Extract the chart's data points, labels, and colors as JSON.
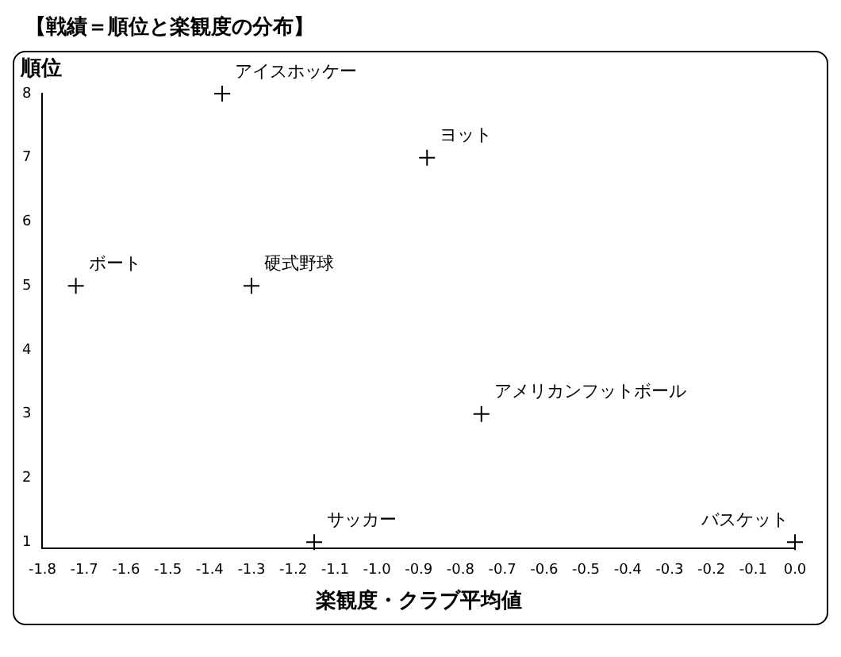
{
  "chart_data": {
    "type": "scatter",
    "title": "【戦績＝順位と楽観度の分布】",
    "xlabel": "楽観度・クラブ平均値",
    "ylabel": "順位",
    "x": [
      -1.72,
      -1.37,
      -1.3,
      -0.88,
      -0.75,
      -1.15,
      0.0
    ],
    "values": [
      5,
      8,
      5,
      7,
      3,
      1,
      1
    ],
    "color": "#000000",
    "marker": "cross",
    "grid": false,
    "legend": false,
    "xlim": [
      -1.8,
      0.0
    ],
    "xticks": [
      {
        "value": -1.8,
        "label": "-1.8"
      },
      {
        "value": -1.7,
        "label": "-1.7"
      },
      {
        "value": -1.6,
        "label": "-1.6"
      },
      {
        "value": -1.5,
        "label": "-1.5"
      },
      {
        "value": -1.4,
        "label": "-1.4"
      },
      {
        "value": -1.3,
        "label": "-1.3"
      },
      {
        "value": -1.2,
        "label": "-1.2"
      },
      {
        "value": -1.1,
        "label": "-1.1"
      },
      {
        "value": -1.0,
        "label": "-1.0"
      },
      {
        "value": -0.9,
        "label": "-0.9"
      },
      {
        "value": -0.8,
        "label": "-0.8"
      },
      {
        "value": -0.7,
        "label": "-0.7"
      },
      {
        "value": -0.6,
        "label": "-0.6"
      },
      {
        "value": -0.5,
        "label": "-0.5"
      },
      {
        "value": -0.4,
        "label": "-0.4"
      },
      {
        "value": -0.3,
        "label": "-0.3"
      },
      {
        "value": -0.2,
        "label": "-0.2"
      },
      {
        "value": -0.1,
        "label": "-0.1"
      },
      {
        "value": 0.0,
        "label": "0.0"
      }
    ],
    "ylim": [
      0.9,
      8
    ],
    "yticks": [
      1,
      2,
      3,
      4,
      5,
      6,
      7,
      8
    ],
    "annotations": [
      {
        "text": "ボート",
        "x": -1.72,
        "y": 5
      },
      {
        "text": "アイスホッケー",
        "x": -1.37,
        "y": 8
      },
      {
        "text": "硬式野球",
        "x": -1.3,
        "y": 5
      },
      {
        "text": "ヨット",
        "x": -0.88,
        "y": 7
      },
      {
        "text": "アメリカンフットボール",
        "x": -0.75,
        "y": 3
      },
      {
        "text": "サッカー",
        "x": -1.15,
        "y": 1
      },
      {
        "text": "バスケット",
        "x": 0.0,
        "y": 1
      }
    ]
  }
}
